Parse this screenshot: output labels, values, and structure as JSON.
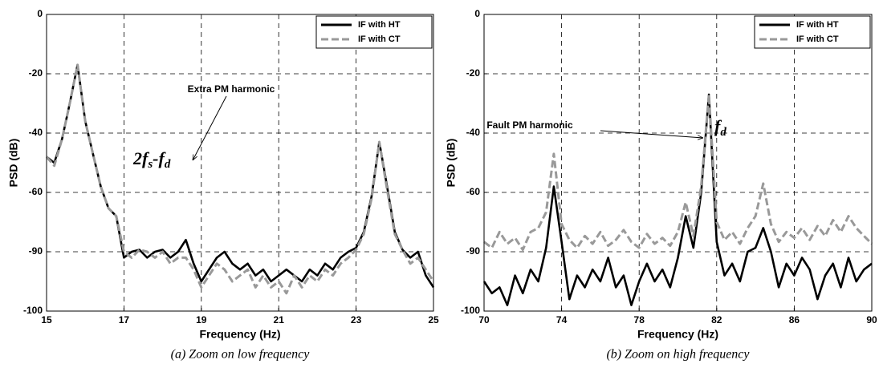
{
  "chart_data": [
    {
      "type": "line",
      "caption": "(a) Zoom on low frequency",
      "xlabel": "Frequency (Hz)",
      "ylabel": "PSD (dB)",
      "annotation": "Extra PM harmonic",
      "math_label": [
        "2f",
        "s",
        "-f",
        "d"
      ],
      "legend": "upper right",
      "grid": true,
      "xlim": [
        15,
        25
      ],
      "xticks": [
        15,
        17,
        19,
        21,
        23,
        25
      ],
      "ylim": [
        -100,
        0
      ],
      "yticks": [
        -100,
        -90,
        -60,
        -40,
        -20,
        0
      ],
      "x": [
        15.0,
        15.2,
        15.4,
        15.6,
        15.8,
        16.0,
        16.2,
        16.4,
        16.6,
        16.8,
        17.0,
        17.2,
        17.4,
        17.6,
        17.8,
        18.0,
        18.2,
        18.4,
        18.6,
        18.8,
        19.0,
        19.2,
        19.4,
        19.6,
        19.8,
        20.0,
        20.2,
        20.4,
        20.6,
        20.8,
        21.0,
        21.2,
        21.4,
        21.6,
        21.8,
        22.0,
        22.2,
        22.4,
        22.6,
        22.8,
        23.0,
        23.2,
        23.4,
        23.6,
        23.8,
        24.0,
        24.2,
        24.4,
        24.6,
        24.8,
        25.0
      ],
      "series": [
        {
          "name": "IF with HT",
          "color": "#000000",
          "dashed": false,
          "values": [
            -48,
            -50,
            -42,
            -30,
            -17,
            -36,
            -47,
            -58,
            -68,
            -72,
            -91,
            -90,
            -89,
            -91,
            -90,
            -89,
            -91,
            -90,
            -84,
            -92,
            -95,
            -93,
            -91,
            -90,
            -92,
            -93,
            -92,
            -94,
            -93,
            -95,
            -94,
            -93,
            -94,
            -95,
            -93,
            -94,
            -92,
            -93,
            -91,
            -90,
            -88,
            -80,
            -62,
            -43,
            -58,
            -80,
            -89,
            -91,
            -90,
            -94,
            -96
          ]
        },
        {
          "name": "IF with CT",
          "color": "#999999",
          "dashed": true,
          "values": [
            -48,
            -51,
            -42,
            -30,
            -17,
            -36,
            -47,
            -58,
            -68,
            -72,
            -90,
            -91,
            -89,
            -90,
            -91,
            -90,
            -92,
            -91,
            -91,
            -93,
            -96,
            -94,
            -92,
            -93,
            -95,
            -94,
            -93,
            -96,
            -94,
            -96,
            -95,
            -97,
            -94,
            -96,
            -94,
            -95,
            -93,
            -94,
            -92,
            -91,
            -89,
            -81,
            -63,
            -43,
            -59,
            -81,
            -89,
            -92,
            -91,
            -93,
            -95
          ]
        }
      ]
    },
    {
      "type": "line",
      "caption": "(b) Zoom on high frequency",
      "xlabel": "Frequency (Hz)",
      "ylabel": "PSD (dB)",
      "annotation": "Fault PM harmonic",
      "math_label": [
        "f",
        "d"
      ],
      "legend": "upper right",
      "grid": true,
      "xlim": [
        70,
        90
      ],
      "xticks": [
        70,
        74,
        78,
        82,
        86,
        90
      ],
      "ylim": [
        -100,
        0
      ],
      "yticks": [
        -100,
        -90,
        -60,
        -40,
        -20,
        0
      ],
      "x": [
        70.0,
        70.4,
        70.8,
        71.2,
        71.6,
        72.0,
        72.4,
        72.8,
        73.2,
        73.6,
        74.0,
        74.4,
        74.8,
        75.2,
        75.6,
        76.0,
        76.4,
        76.8,
        77.2,
        77.6,
        78.0,
        78.4,
        78.8,
        79.2,
        79.6,
        80.0,
        80.4,
        80.8,
        81.2,
        81.6,
        82.0,
        82.4,
        82.8,
        83.2,
        83.6,
        84.0,
        84.4,
        84.8,
        85.2,
        85.6,
        86.0,
        86.4,
        86.8,
        87.2,
        87.6,
        88.0,
        88.4,
        88.8,
        89.2,
        89.6,
        90.0
      ],
      "series": [
        {
          "name": "IF with HT",
          "color": "#000000",
          "dashed": false,
          "values": [
            -95,
            -97,
            -96,
            -99,
            -94,
            -97,
            -93,
            -95,
            -88,
            -58,
            -85,
            -98,
            -94,
            -96,
            -93,
            -95,
            -91,
            -96,
            -94,
            -99,
            -95,
            -92,
            -95,
            -93,
            -96,
            -91,
            -72,
            -88,
            -60,
            -27,
            -85,
            -94,
            -92,
            -95,
            -90,
            -88,
            -78,
            -90,
            -96,
            -92,
            -94,
            -91,
            -93,
            -98,
            -94,
            -92,
            -96,
            -91,
            -95,
            -93,
            -92
          ]
        },
        {
          "name": "IF with CT",
          "color": "#999999",
          "dashed": true,
          "values": [
            -85,
            -88,
            -80,
            -86,
            -83,
            -89,
            -80,
            -78,
            -70,
            -47,
            -76,
            -84,
            -88,
            -82,
            -86,
            -80,
            -87,
            -84,
            -79,
            -85,
            -88,
            -81,
            -86,
            -83,
            -87,
            -80,
            -65,
            -82,
            -58,
            -27,
            -75,
            -84,
            -80,
            -86,
            -78,
            -72,
            -57,
            -76,
            -85,
            -80,
            -83,
            -78,
            -84,
            -77,
            -82,
            -74,
            -80,
            -72,
            -78,
            -82,
            -86
          ]
        }
      ]
    }
  ]
}
